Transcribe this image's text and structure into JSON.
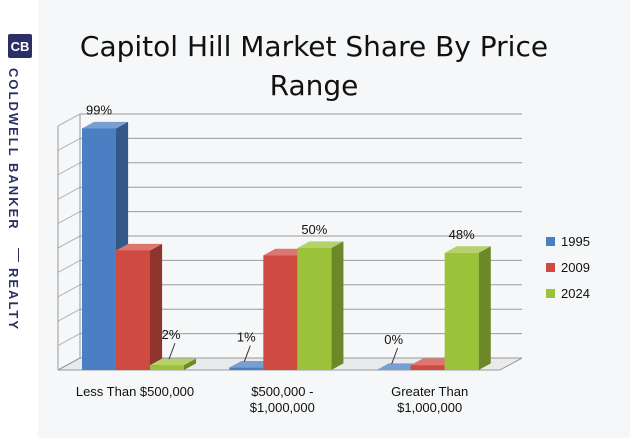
{
  "brand": {
    "logo": "CB",
    "name": "COLDWELL BANKER",
    "sub": "REALTY"
  },
  "chart_data": {
    "type": "bar",
    "title_lines": [
      "Capitol Hill Market Share By Price",
      "Range"
    ],
    "categories": [
      [
        "Less Than $500,000"
      ],
      [
        "$500,000 -",
        "$1,000,000"
      ],
      [
        "Greater Than",
        "$1,000,000"
      ]
    ],
    "series": [
      {
        "name": "1995",
        "values": [
          99,
          1,
          0
        ],
        "color": "#4a7fc4"
      },
      {
        "name": "2009",
        "values": [
          49,
          47,
          2
        ],
        "color": "#cf4a40"
      },
      {
        "name": "2024",
        "values": [
          2,
          50,
          48
        ],
        "color": "#9bc239"
      }
    ],
    "data_labels": [
      {
        "series": 0,
        "category": 0,
        "text": "99%"
      },
      {
        "series": 2,
        "category": 0,
        "text": "2%"
      },
      {
        "series": 0,
        "category": 1,
        "text": "1%"
      },
      {
        "series": 2,
        "category": 1,
        "text": "50%"
      },
      {
        "series": 0,
        "category": 2,
        "text": "0%"
      },
      {
        "series": 2,
        "category": 2,
        "text": "48%"
      }
    ],
    "ylim": [
      0,
      100
    ],
    "grid": true,
    "legend": "right"
  }
}
